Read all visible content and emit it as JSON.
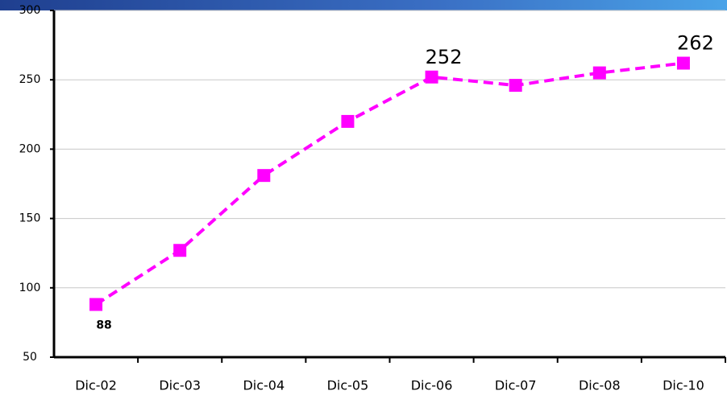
{
  "chart_data": {
    "type": "line",
    "categories": [
      "Dic-02",
      "Dic-03",
      "Dic-04",
      "Dic-05",
      "Dic-06",
      "Dic-07",
      "Dic-08",
      "Dic-10"
    ],
    "series": [
      {
        "color": "#ff00ff",
        "values": [
          88,
          127,
          181,
          220,
          252,
          246,
          255,
          262
        ],
        "value_labels": [
          "88",
          null,
          null,
          null,
          "252",
          null,
          null,
          "262"
        ]
      }
    ],
    "ylim": [
      50,
      300
    ],
    "yticks": [
      50,
      100,
      150,
      200,
      250,
      300
    ],
    "grid": true
  }
}
